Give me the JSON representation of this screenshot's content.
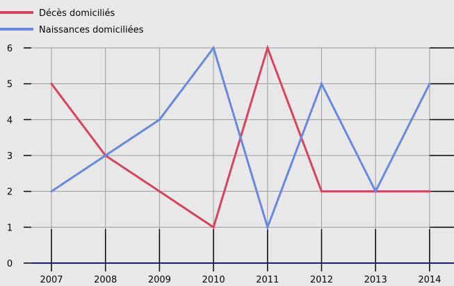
{
  "chart_data": {
    "type": "line",
    "title": "",
    "categories": [
      "2007",
      "2008",
      "2009",
      "2010",
      "2011",
      "2012",
      "2013",
      "2014"
    ],
    "series": [
      {
        "name": "Décès domiciliés",
        "color": "#d9415d",
        "values": [
          5,
          3,
          2,
          1,
          6,
          2,
          2,
          2
        ]
      },
      {
        "name": "Naissances domiciliées",
        "color": "#6688e0",
        "values": [
          2,
          3,
          4,
          6,
          1,
          5,
          2,
          5
        ]
      }
    ],
    "ylim": [
      0,
      6
    ],
    "yticks": [
      0,
      1,
      2,
      3,
      4,
      5,
      6
    ],
    "grid": true,
    "legend_position": "top-left"
  }
}
